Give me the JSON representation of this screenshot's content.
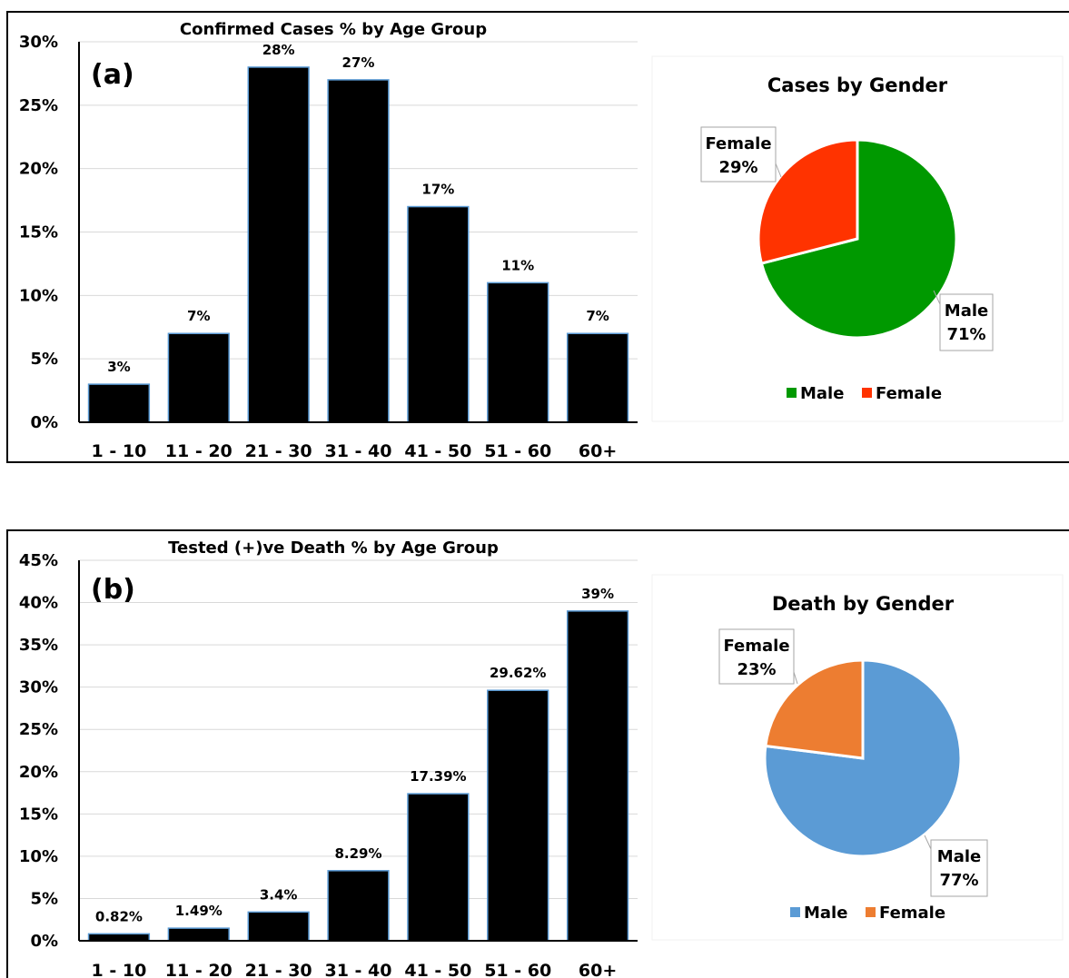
{
  "panels": [
    {
      "id": "a",
      "panel_label": "(a)",
      "bar_chart": {
        "title": "Confirmed Cases % by Age Group"
      },
      "pie_chart": {
        "title": "Cases by Gender",
        "legend": [
          "Male",
          "Female"
        ]
      }
    },
    {
      "id": "b",
      "panel_label": "(b)",
      "bar_chart": {
        "title": "Tested (+)ve Death % by Age Group"
      },
      "pie_chart": {
        "title": "Death by Gender",
        "legend": [
          "Male",
          "Female"
        ]
      }
    }
  ],
  "chart_data": [
    {
      "type": "bar",
      "title": "Confirmed Cases % by Age Group",
      "categories": [
        "1 - 10",
        "11 - 20",
        "21 - 30",
        "31 - 40",
        "41 - 50",
        "51 - 60",
        "60+"
      ],
      "values": [
        3,
        7,
        28,
        27,
        17,
        11,
        7
      ],
      "data_labels": [
        "3%",
        "7%",
        "28%",
        "27%",
        "17%",
        "11%",
        "7%"
      ],
      "ylim": [
        0,
        30
      ],
      "yticks": [
        "0%",
        "5%",
        "10%",
        "15%",
        "20%",
        "25%",
        "30%"
      ],
      "bar_color": "#000000",
      "grid": true
    },
    {
      "type": "pie",
      "title": "Cases by Gender",
      "categories": [
        "Male",
        "Female"
      ],
      "values": [
        71,
        29
      ],
      "data_labels": [
        [
          "Male",
          "71%"
        ],
        [
          "Female",
          "29%"
        ]
      ],
      "colors": [
        "#009900",
        "#ff3300"
      ],
      "legend": "bottom"
    },
    {
      "type": "bar",
      "title": "Tested (+)ve Death % by Age Group",
      "categories": [
        "1 - 10",
        "11 - 20",
        "21 - 30",
        "31 - 40",
        "41 - 50",
        "51 - 60",
        "60+"
      ],
      "values": [
        0.82,
        1.49,
        3.4,
        8.29,
        17.39,
        29.62,
        39
      ],
      "data_labels": [
        "0.82%",
        "1.49%",
        "3.4%",
        "8.29%",
        "17.39%",
        "29.62%",
        "39%"
      ],
      "ylim": [
        0,
        45
      ],
      "yticks": [
        "0%",
        "5%",
        "10%",
        "15%",
        "20%",
        "25%",
        "30%",
        "35%",
        "40%",
        "45%"
      ],
      "bar_color": "#000000",
      "grid": true
    },
    {
      "type": "pie",
      "title": "Death by Gender",
      "categories": [
        "Male",
        "Female"
      ],
      "values": [
        77,
        23
      ],
      "data_labels": [
        [
          "Male",
          "77%"
        ],
        [
          "Female",
          "23%"
        ]
      ],
      "colors": [
        "#5b9bd5",
        "#ed7d31"
      ],
      "legend": "bottom"
    }
  ]
}
